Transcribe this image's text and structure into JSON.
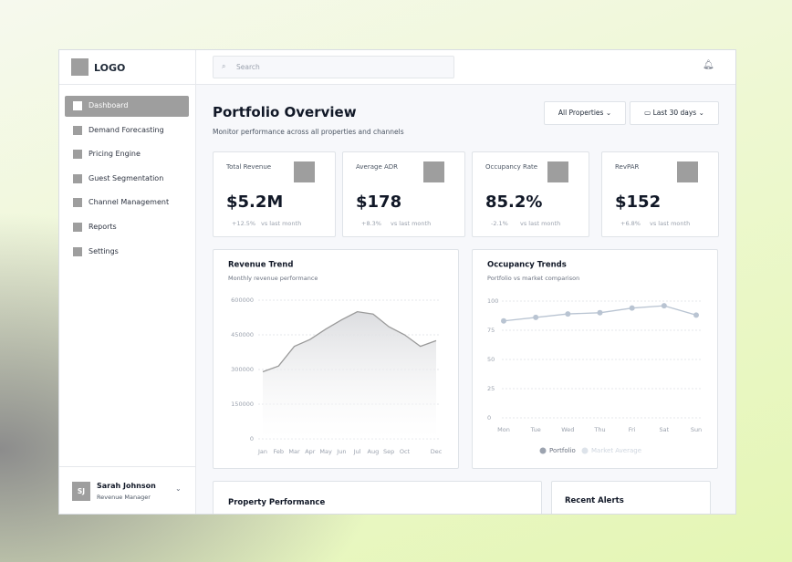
{
  "sidebar": {
    "logo": "LOGO",
    "nav": [
      "Dashboard",
      "Demand Forecasting",
      "Pricing Engine",
      "Guest Segmentation",
      "Channel Management",
      "Reports",
      "Settings"
    ],
    "user": {
      "initials": "SJ",
      "name": "Sarah Johnson",
      "role": "Revenue Manager"
    }
  },
  "topbar": {
    "search_placeholder": "Search"
  },
  "header": {
    "title": "Portfolio Overview",
    "subtitle": "Monitor performance across all properties and channels",
    "filters": [
      "All Properties",
      "Last 30 days"
    ]
  },
  "kpis": [
    {
      "label": "Total Revenue",
      "value": "$5.2M",
      "change": "+12.5%",
      "comparison": "vs last month"
    },
    {
      "label": "Average ADR",
      "value": "$178",
      "change": "+8.3%",
      "comparison": "vs last month"
    },
    {
      "label": "Occupancy Rate",
      "value": "85.2%",
      "change": "-2.1%",
      "comparison": "vs last month"
    },
    {
      "label": "RevPAR",
      "value": "$152",
      "change": "+6.8%",
      "comparison": "vs last month"
    }
  ],
  "chart_data": [
    {
      "type": "area",
      "title": "Revenue Trend",
      "subtitle": "Monthly revenue performance",
      "categories": [
        "Jan",
        "Feb",
        "Mar",
        "Apr",
        "May",
        "Jun",
        "Jul",
        "Aug",
        "Sep",
        "Oct",
        null,
        "Dec"
      ],
      "values": [
        290000,
        315000,
        400000,
        430000,
        475000,
        515000,
        550000,
        540000,
        485000,
        450000,
        400000,
        425000
      ],
      "color": "#9a9a9a",
      "ylim": [
        0,
        600000
      ],
      "yticks": [
        0,
        150000,
        300000,
        450000,
        600000
      ],
      "grid": true
    },
    {
      "type": "line",
      "title": "Occupancy Trends",
      "subtitle": "Portfolio vs market comparison",
      "categories": [
        "Mon",
        "Tue",
        "Wed",
        "Thu",
        "Fri",
        "Sat",
        "Sun"
      ],
      "series": [
        {
          "name": "Portfolio",
          "color": "#b9c4d2",
          "values": [
            83,
            86,
            89,
            90,
            94,
            96,
            88
          ]
        },
        {
          "name": "Market Average",
          "color": "#dde3ea",
          "values": [
            null,
            null,
            null,
            null,
            null,
            null,
            null
          ]
        }
      ],
      "ylim": [
        0,
        100
      ],
      "yticks": [
        0,
        25,
        50,
        75,
        100
      ],
      "grid": true
    }
  ],
  "sections": [
    "Property Performance",
    "Recent Alerts"
  ]
}
